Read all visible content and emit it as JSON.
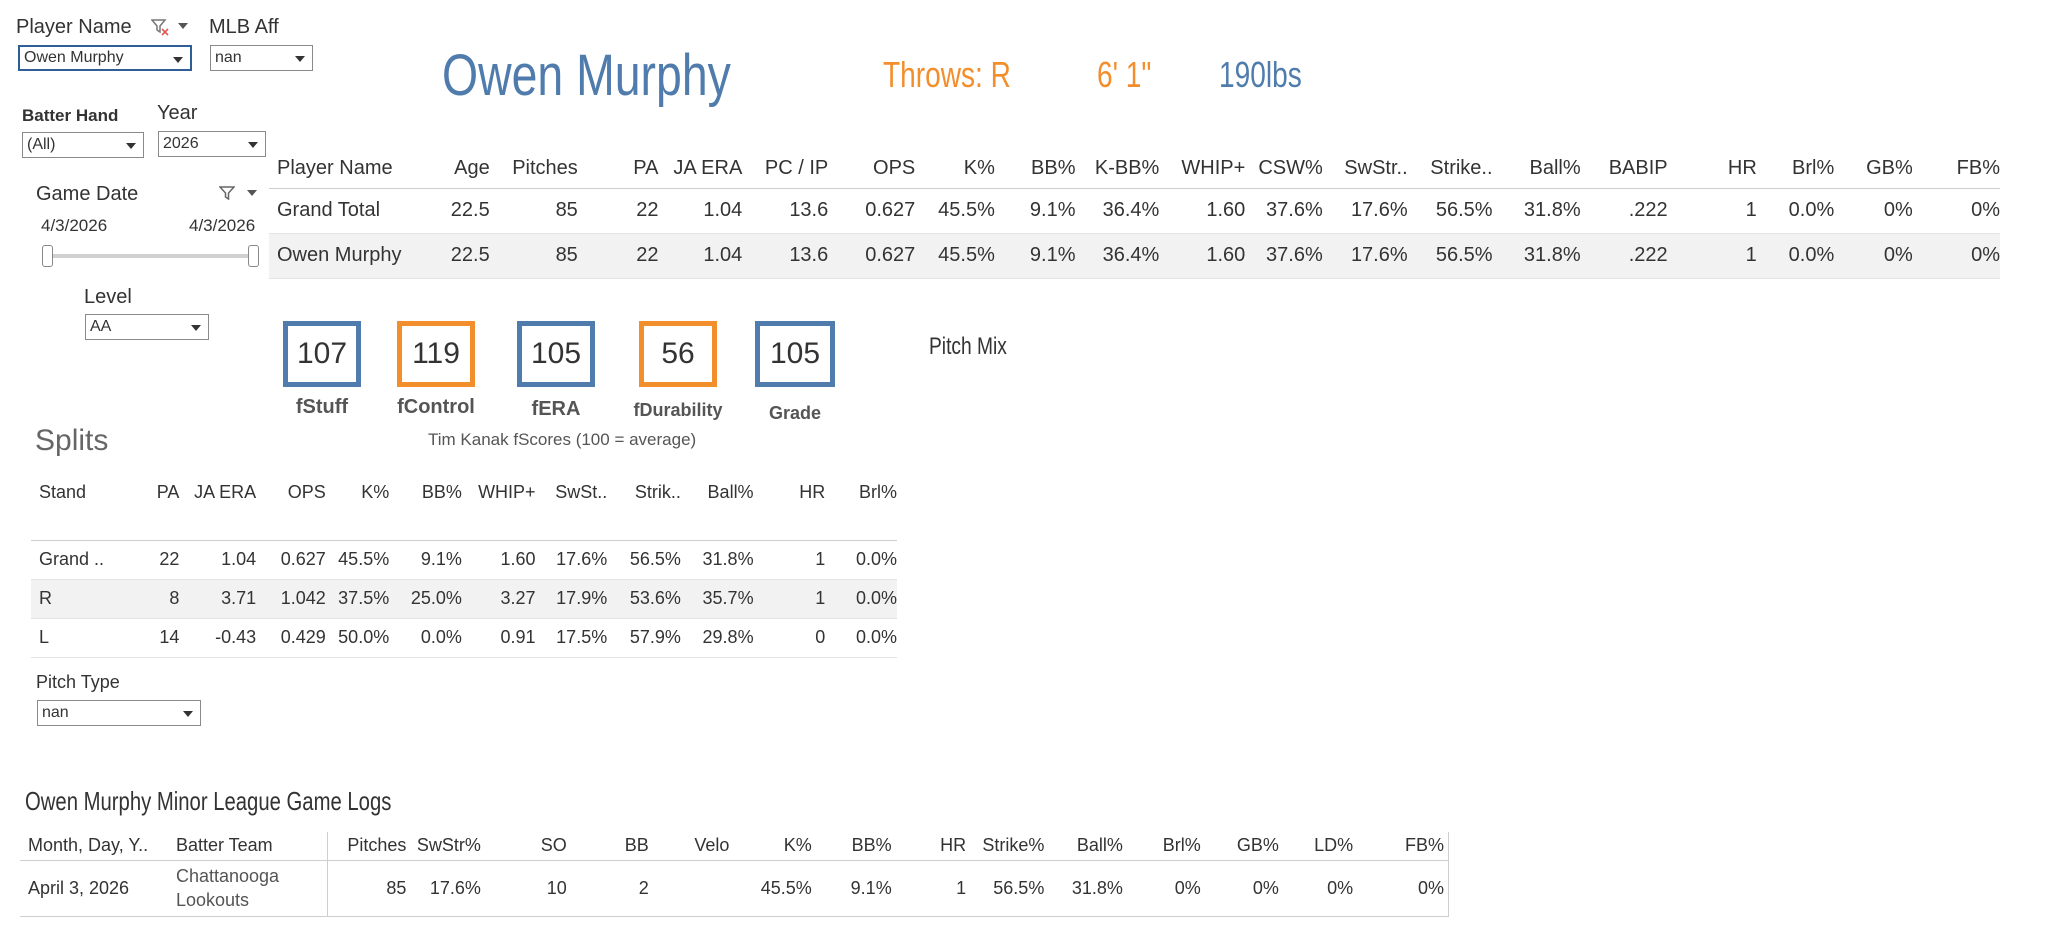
{
  "filters": {
    "player_name": {
      "label": "Player Name",
      "value": "Owen Murphy"
    },
    "mlb_aff": {
      "label": "MLB Aff",
      "value": "nan"
    },
    "batter_hand": {
      "label": "Batter Hand",
      "value": "(All)"
    },
    "year": {
      "label": "Year",
      "value": "2026"
    },
    "game_date": {
      "label": "Game Date",
      "start": "4/3/2026",
      "end": "4/3/2026"
    },
    "level": {
      "label": "Level",
      "value": "AA"
    },
    "pitch_type": {
      "label": "Pitch Type",
      "value": "nan"
    }
  },
  "header": {
    "player": "Owen Murphy",
    "throws": "Throws: R",
    "height": "6' 1\"",
    "weight": "190lbs"
  },
  "summary": {
    "columns": [
      "Player Name",
      "Age",
      "Pitches",
      "PA",
      "JA ERA",
      "PC / IP",
      "OPS",
      "K%",
      "BB%",
      "K-BB%",
      "WHIP+",
      "CSW%",
      "SwStr..",
      "Strike..",
      "Ball%",
      "BABIP",
      "HR",
      "Brl%",
      "GB%",
      "FB%"
    ],
    "rows": [
      [
        "Grand Total",
        "22.5",
        "85",
        "22",
        "1.04",
        "13.6",
        "0.627",
        "45.5%",
        "9.1%",
        "36.4%",
        "1.60",
        "37.6%",
        "17.6%",
        "56.5%",
        "31.8%",
        ".222",
        "1",
        "0.0%",
        "0%",
        "0%"
      ],
      [
        "Owen Murphy",
        "22.5",
        "85",
        "22",
        "1.04",
        "13.6",
        "0.627",
        "45.5%",
        "9.1%",
        "36.4%",
        "1.60",
        "37.6%",
        "17.6%",
        "56.5%",
        "31.8%",
        ".222",
        "1",
        "0.0%",
        "0%",
        "0%"
      ]
    ]
  },
  "fscores": {
    "items": [
      {
        "value": "107",
        "label": "fStuff",
        "color": "#4f7cac"
      },
      {
        "value": "119",
        "label": "fControl",
        "color": "#f28e2b"
      },
      {
        "value": "105",
        "label": "fERA",
        "color": "#4f7cac"
      },
      {
        "value": "56",
        "label": "fDurability",
        "color": "#f28e2b"
      },
      {
        "value": "105",
        "label": "Grade",
        "color": "#4f7cac"
      }
    ],
    "caption": "Tim Kanak fScores (100 = average)"
  },
  "pitch_mix": {
    "title": "Pitch Mix"
  },
  "splits": {
    "title": "Splits",
    "columns": [
      "Stand",
      "PA",
      "JA ERA",
      "OPS",
      "K%",
      "BB%",
      "WHIP+",
      "SwSt..",
      "Strik..",
      "Ball%",
      "HR",
      "Brl%"
    ],
    "rows": [
      [
        "Grand ..",
        "22",
        "1.04",
        "0.627",
        "45.5%",
        "9.1%",
        "1.60",
        "17.6%",
        "56.5%",
        "31.8%",
        "1",
        "0.0%"
      ],
      [
        "R",
        "8",
        "3.71",
        "1.042",
        "37.5%",
        "25.0%",
        "3.27",
        "17.9%",
        "53.6%",
        "35.7%",
        "1",
        "0.0%"
      ],
      [
        "L",
        "14",
        "-0.43",
        "0.429",
        "50.0%",
        "0.0%",
        "0.91",
        "17.5%",
        "57.9%",
        "29.8%",
        "0",
        "0.0%"
      ]
    ]
  },
  "game_logs": {
    "title": "Owen Murphy Minor League Game Logs",
    "columns": [
      "Month, Day, Y..",
      "Batter Team",
      "Pitches",
      "SwStr%",
      "SO",
      "BB",
      "Velo",
      "K%",
      "BB%",
      "HR",
      "Strike%",
      "Ball%",
      "Brl%",
      "GB%",
      "LD%",
      "FB%"
    ],
    "rows": [
      [
        "April 3, 2026",
        "Chattanooga Lookouts",
        "85",
        "17.6%",
        "10",
        "2",
        "",
        "45.5%",
        "9.1%",
        "1",
        "56.5%",
        "31.8%",
        "0%",
        "0%",
        "0%",
        "0%"
      ]
    ]
  },
  "colors": {
    "blue": "#4f7cac",
    "orange": "#f28e2b",
    "focus": "#2f5e97"
  }
}
